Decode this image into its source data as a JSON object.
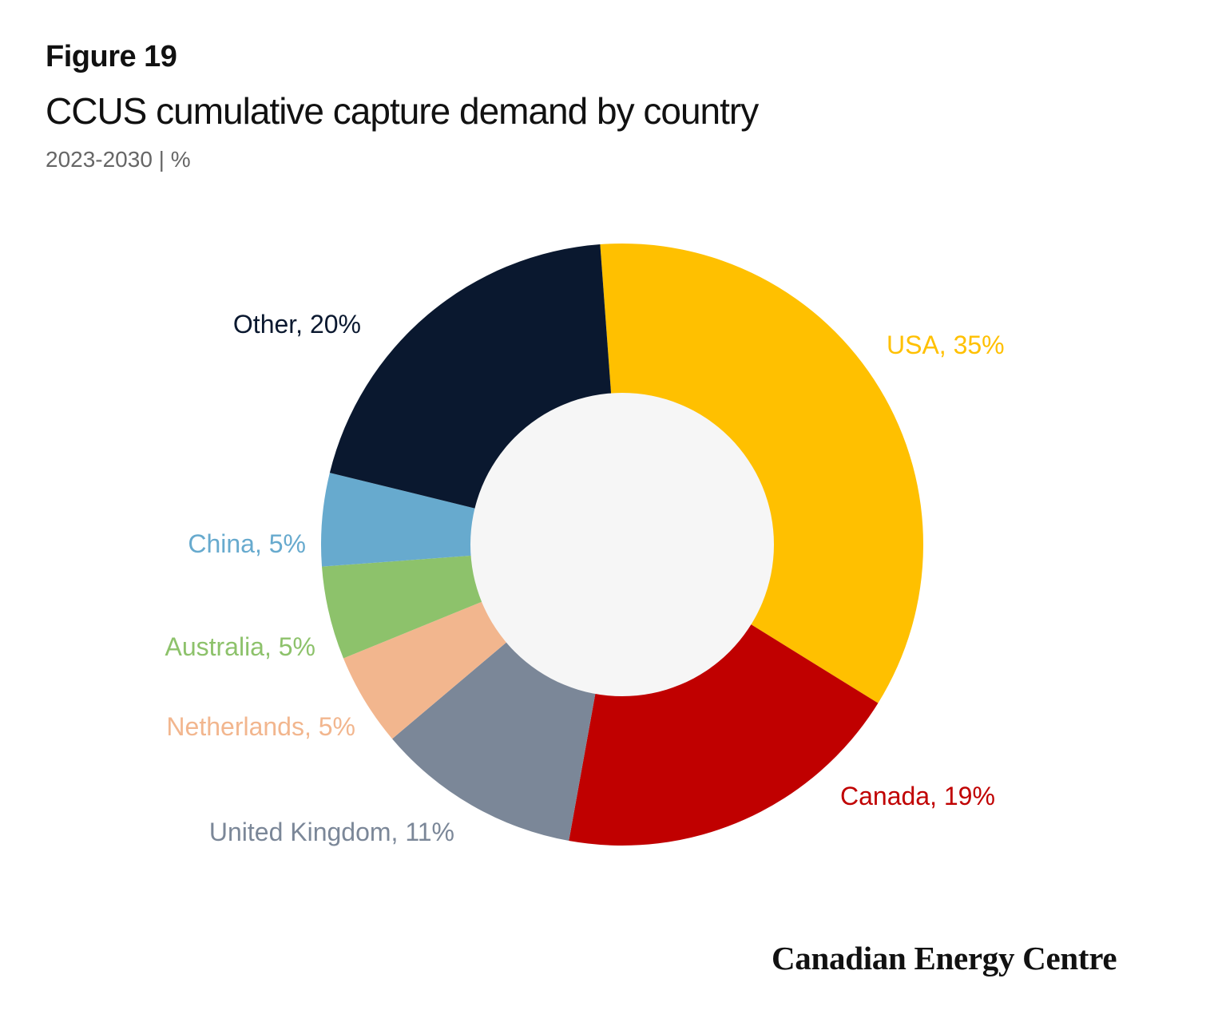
{
  "figure_label": "Figure 19",
  "brand": "Canadian Energy Centre",
  "chart_data": {
    "type": "pie",
    "donut": true,
    "title": "CCUS cumulative capture demand by country",
    "subtitle": "2023-2030   |   %",
    "unit": "%",
    "legend": "none (labels beside slices)",
    "slices": [
      {
        "label": "USA",
        "value": 35,
        "text": "USA, 35%",
        "color": "#FFC000"
      },
      {
        "label": "Canada",
        "value": 19,
        "text": "Canada, 19%",
        "color": "#C00000"
      },
      {
        "label": "United Kingdom",
        "value": 11,
        "text": "United Kingdom, 11%",
        "color": "#7B8798"
      },
      {
        "label": "Netherlands",
        "value": 5,
        "text": "Netherlands, 5%",
        "color": "#F2B68E"
      },
      {
        "label": "Australia",
        "value": 5,
        "text": "Australia, 5%",
        "color": "#8DC26B"
      },
      {
        "label": "China",
        "value": 5,
        "text": "China, 5%",
        "color": "#67AACE"
      },
      {
        "label": "Other",
        "value": 20,
        "text": "Other, 20%",
        "color": "#0A182F"
      }
    ],
    "center_color": "#F6F6F6"
  }
}
